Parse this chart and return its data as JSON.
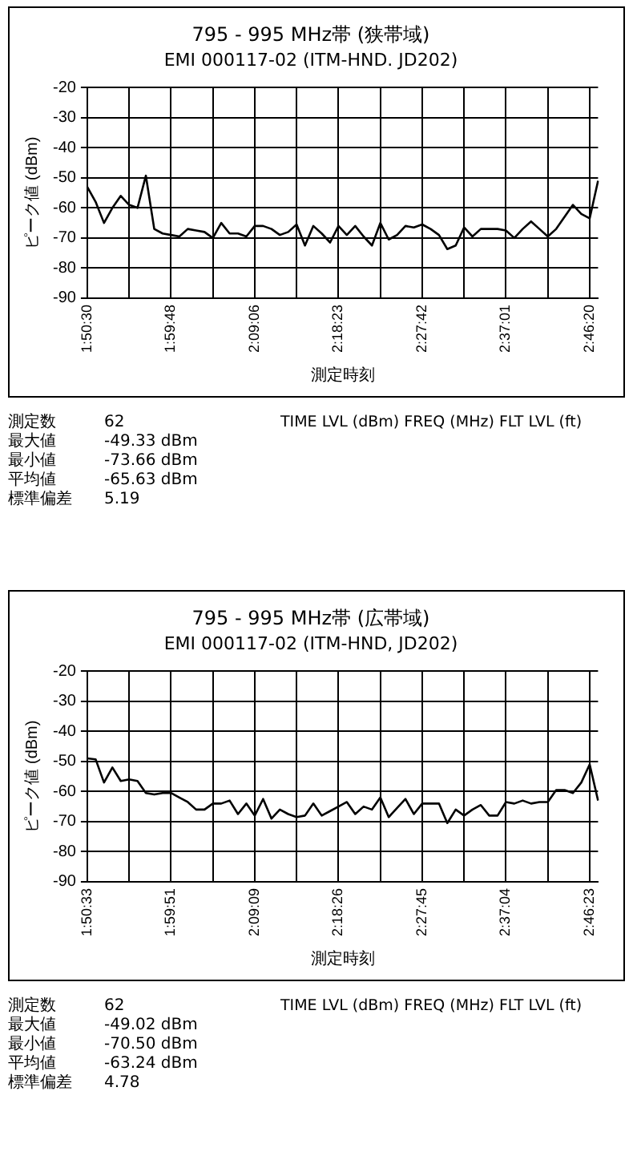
{
  "chart_data": [
    {
      "type": "line",
      "title": "795 - 995 MHz帯 (狭帯域)",
      "subtitle": "EMI 000117-02 (ITM-HND. JD202)",
      "xlabel": "測定時刻",
      "ylabel": "ピーク値 (dBm)",
      "categories": [
        "1:50:30",
        null,
        null,
        null,
        null,
        null,
        null,
        null,
        null,
        null,
        "1:59:48",
        null,
        null,
        null,
        null,
        null,
        null,
        null,
        null,
        null,
        "2:09:06",
        null,
        null,
        null,
        null,
        null,
        null,
        null,
        null,
        null,
        "2:18:23",
        null,
        null,
        null,
        null,
        null,
        null,
        null,
        null,
        null,
        "2:27:42",
        null,
        null,
        null,
        null,
        null,
        null,
        null,
        null,
        null,
        "2:37:01",
        null,
        null,
        null,
        null,
        null,
        null,
        null,
        null,
        null,
        "2:46:20",
        null
      ],
      "series": [
        {
          "color": "#000000",
          "values": [
            -53,
            -58,
            -65,
            -60,
            -56,
            -59,
            -60,
            -49.3,
            -67,
            -68.5,
            -69,
            -69.5,
            -67,
            -67.5,
            -68,
            -70,
            -65,
            -68.5,
            -68.5,
            -69.5,
            -66,
            -66,
            -67,
            -69,
            -68,
            -65.5,
            -72.5,
            -66,
            -68.5,
            -71.5,
            -66,
            -69,
            -66,
            -69.5,
            -72.5,
            -65,
            -70.5,
            -69,
            -66,
            -66.5,
            -65.5,
            -67,
            -69,
            -73.7,
            -72.5,
            -66.5,
            -69.5,
            -67,
            -67,
            -67,
            -67.5,
            -70,
            -67,
            -64.5,
            -67,
            -69.5,
            -67,
            -63,
            -59,
            -62,
            -63.5,
            -51
          ]
        }
      ],
      "ylim": [
        -90,
        -20
      ],
      "yticks": [
        -90,
        -80,
        -70,
        -60,
        -50,
        -40,
        -30,
        -20
      ],
      "grid": true,
      "marker": "none",
      "line_style": "solid",
      "annotations": [
        "測定数 62",
        "最大値 -49.33 dBm",
        "最小値 -73.66 dBm",
        "平均値 -65.63 dBm",
        "標準偏差 5.19",
        "TIME LVL (dBm) FREQ (MHz) FLT LVL (ft)"
      ]
    },
    {
      "type": "line",
      "title": "795 - 995 MHz帯 (広帯域)",
      "subtitle": "EMI 000117-02 (ITM-HND, JD202)",
      "xlabel": "測定時刻",
      "ylabel": "ピーク値 (dBm)",
      "categories": [
        "1:50:33",
        null,
        null,
        null,
        null,
        null,
        null,
        null,
        null,
        null,
        "1:59:51",
        null,
        null,
        null,
        null,
        null,
        null,
        null,
        null,
        null,
        "2:09:09",
        null,
        null,
        null,
        null,
        null,
        null,
        null,
        null,
        null,
        "2:18:26",
        null,
        null,
        null,
        null,
        null,
        null,
        null,
        null,
        null,
        "2:27:45",
        null,
        null,
        null,
        null,
        null,
        null,
        null,
        null,
        null,
        "2:37:04",
        null,
        null,
        null,
        null,
        null,
        null,
        null,
        null,
        null,
        "2:46:23",
        null
      ],
      "series": [
        {
          "color": "#000000",
          "values": [
            -49,
            -49.3,
            -57,
            -52,
            -56.5,
            -56,
            -56.5,
            -60.5,
            -61,
            -60.5,
            -60.5,
            -62,
            -63.5,
            -66,
            -66,
            -64,
            -64,
            -63,
            -67.5,
            -64,
            -68,
            -62.5,
            -69,
            -66,
            -67.5,
            -68.5,
            -68,
            -64,
            -68,
            -66.5,
            -65,
            -63.5,
            -67.5,
            -65,
            -66,
            -62,
            -68.5,
            -65.5,
            -62.5,
            -67.5,
            -64,
            -64,
            -64,
            -70.5,
            -66,
            -68,
            -66,
            -64.5,
            -68,
            -68,
            -63.5,
            -64,
            -63,
            -64,
            -63.5,
            -63.5,
            -59.5,
            -59.5,
            -60.5,
            -57,
            -51,
            -63
          ]
        }
      ],
      "ylim": [
        -90,
        -20
      ],
      "yticks": [
        -90,
        -80,
        -70,
        -60,
        -50,
        -40,
        -30,
        -20
      ],
      "grid": true,
      "marker": "none",
      "line_style": "solid",
      "annotations": [
        "測定数 62",
        "最大値 -49.02 dBm",
        "最小値 -70.50 dBm",
        "平均値 -63.24 dBm",
        "標準偏差 4.78",
        "TIME LVL (dBm) FREQ (MHz) FLT LVL (ft)"
      ]
    }
  ]
}
